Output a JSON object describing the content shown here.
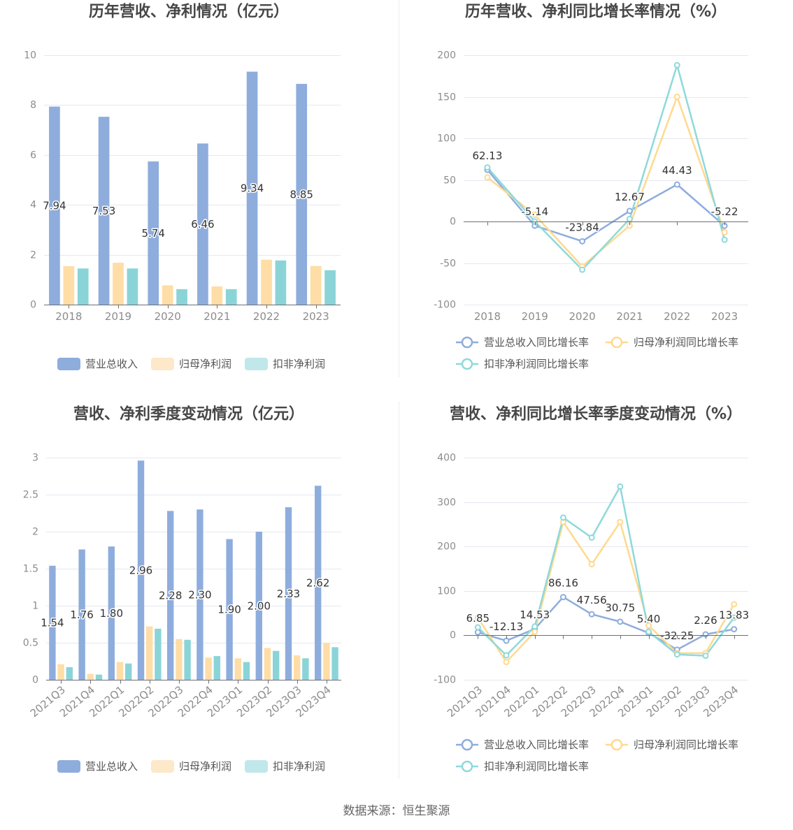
{
  "footer": {
    "source": "数据来源：恒生聚源"
  },
  "colors": {
    "grid": "#e4e8f0",
    "axis": "#6e7079",
    "divider": "#ececec"
  },
  "chart_data": [
    {
      "type": "bar",
      "title": "历年营收、净利情况（亿元）",
      "categories": [
        "2018",
        "2019",
        "2020",
        "2021",
        "2022",
        "2023"
      ],
      "ylim": [
        0,
        10
      ],
      "yticks": [
        0,
        2,
        4,
        6,
        8,
        10
      ],
      "grid": true,
      "legend": "bottom",
      "series": [
        {
          "name": "营业总收入",
          "values": [
            7.94,
            7.53,
            5.74,
            6.46,
            9.34,
            8.85
          ],
          "data_labels": [
            "7.94",
            "7.53",
            "5.74",
            "6.46",
            "9.34",
            "8.85"
          ],
          "color": "#8eaddd",
          "legend_color": "#8eaddd"
        },
        {
          "name": "归母净利润",
          "values": [
            1.54,
            1.68,
            0.77,
            0.73,
            1.8,
            1.55
          ],
          "color": "#ffdda6",
          "legend_color": "#fde8ca"
        },
        {
          "name": "扣非净利润",
          "values": [
            1.45,
            1.45,
            0.62,
            0.62,
            1.77,
            1.38
          ],
          "color": "#8ad4d8",
          "legend_color": "#c0e8ea"
        }
      ]
    },
    {
      "type": "line",
      "title": "历年营收、净利同比增长率情况（%）",
      "categories": [
        "2018",
        "2019",
        "2020",
        "2021",
        "2022",
        "2023"
      ],
      "ylim": [
        -100,
        200
      ],
      "yticks": [
        -100,
        -50,
        0,
        50,
        100,
        150,
        200
      ],
      "grid": true,
      "legend": "bottom",
      "series": [
        {
          "name": "营业总收入同比增长率",
          "values": [
            62.13,
            -5.14,
            -23.84,
            12.67,
            44.43,
            -5.22
          ],
          "data_labels": [
            "62.13",
            "-5.14",
            "-23.84",
            "12.67",
            "44.43",
            "-5.22"
          ],
          "color": "#8eaddd"
        },
        {
          "name": "归母净利润同比增长率",
          "values": [
            53,
            8,
            -54,
            -5,
            150,
            -13
          ],
          "color": "#ffd98f"
        },
        {
          "name": "扣非净利润同比增长率",
          "values": [
            65,
            0,
            -58,
            3,
            188,
            -22
          ],
          "color": "#8fd9da"
        }
      ]
    },
    {
      "type": "bar",
      "title": "营收、净利季度变动情况（亿元）",
      "categories": [
        "2021Q3",
        "2021Q4",
        "2022Q1",
        "2022Q2",
        "2022Q3",
        "2022Q4",
        "2023Q1",
        "2023Q2",
        "2023Q3",
        "2023Q4"
      ],
      "ylim": [
        0,
        3
      ],
      "yticks": [
        0,
        0.5,
        1,
        1.5,
        2,
        2.5,
        3
      ],
      "grid": true,
      "legend": "bottom",
      "series": [
        {
          "name": "营业总收入",
          "values": [
            1.54,
            1.76,
            1.8,
            2.96,
            2.28,
            2.3,
            1.9,
            2.0,
            2.33,
            2.62
          ],
          "data_labels": [
            "1.54",
            "1.76",
            "1.80",
            "2.96",
            "2.28",
            "2.30",
            "1.90",
            "2.00",
            "2.33",
            "2.62"
          ],
          "color": "#8eaddd",
          "legend_color": "#8eaddd"
        },
        {
          "name": "归母净利润",
          "values": [
            0.21,
            0.08,
            0.24,
            0.72,
            0.55,
            0.3,
            0.29,
            0.43,
            0.33,
            0.5
          ],
          "color": "#ffdda6",
          "legend_color": "#fde8ca"
        },
        {
          "name": "扣非净利润",
          "values": [
            0.17,
            0.07,
            0.22,
            0.69,
            0.54,
            0.32,
            0.24,
            0.39,
            0.29,
            0.44
          ],
          "color": "#8ad4d8",
          "legend_color": "#c0e8ea"
        }
      ]
    },
    {
      "type": "line",
      "title": "营收、净利同比增长率季度变动情况（%）",
      "categories": [
        "2021Q3",
        "2021Q4",
        "2022Q1",
        "2022Q2",
        "2022Q3",
        "2022Q4",
        "2023Q1",
        "2023Q2",
        "2023Q3",
        "2023Q4"
      ],
      "ylim": [
        -100,
        400
      ],
      "yticks": [
        -100,
        0,
        100,
        200,
        300,
        400
      ],
      "grid": true,
      "legend": "bottom",
      "series": [
        {
          "name": "营业总收入同比增长率",
          "values": [
            6.85,
            -12.13,
            14.53,
            86.16,
            47.56,
            30.75,
            5.4,
            -32.25,
            2.26,
            13.83
          ],
          "data_labels": [
            "6.85",
            "-12.13",
            "14.53",
            "86.16",
            "47.56",
            "30.75",
            "5.40",
            "-32.25",
            "2.26",
            "13.83"
          ],
          "color": "#8eaddd"
        },
        {
          "name": "归母净利润同比增长率",
          "values": [
            40,
            -60,
            8,
            255,
            160,
            255,
            22,
            -40,
            -40,
            70
          ],
          "color": "#ffd98f"
        },
        {
          "name": "扣非净利润同比增长率",
          "values": [
            18,
            -45,
            20,
            265,
            220,
            335,
            8,
            -43,
            -46,
            40
          ],
          "color": "#8fd9da"
        }
      ]
    }
  ]
}
